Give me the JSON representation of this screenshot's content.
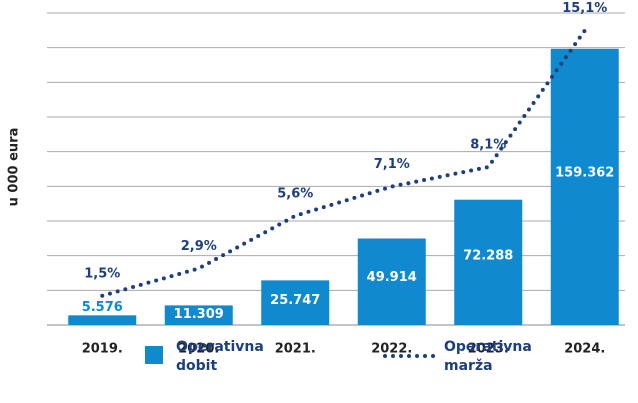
{
  "chart_data": {
    "type": "bar",
    "ylabel": "u 000 eura",
    "categories": [
      "2019.",
      "2020.",
      "2021.",
      "2022.",
      "2023.",
      "2024."
    ],
    "series": [
      {
        "name": "Operativna dobit",
        "type": "bar",
        "color": "#1089cf",
        "values": [
          5576,
          11309,
          25747,
          49914,
          72288,
          159362
        ],
        "value_labels": [
          "5.576",
          "11.309",
          "25.747",
          "49.914",
          "72.288",
          "159.362"
        ]
      },
      {
        "name": "Operativna marža",
        "type": "line",
        "axis": "y2",
        "color": "#1d3f7c",
        "values": [
          1.5,
          2.9,
          5.6,
          7.1,
          8.1,
          15.1
        ],
        "value_labels": [
          "1,5%",
          "2,9%",
          "5,6%",
          "7,1%",
          "8,1%",
          "15,1%"
        ]
      }
    ],
    "ylim": [
      0,
      180000
    ],
    "yticks": [
      0,
      20000,
      40000,
      60000,
      80000,
      100000,
      120000,
      140000,
      160000,
      180000
    ],
    "y2lim": [
      0,
      16
    ],
    "grid": true,
    "legend": "bottom"
  }
}
